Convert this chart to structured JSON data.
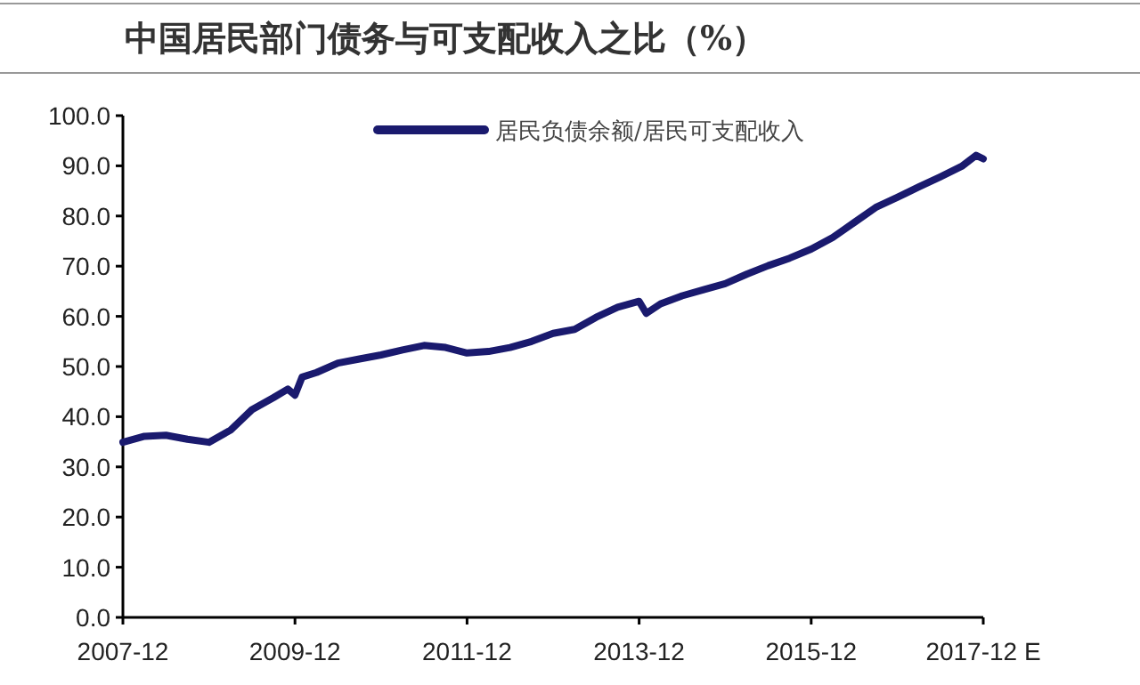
{
  "chart_data": {
    "type": "line",
    "title": "中国居民部门债务与可支配收入之比（%）",
    "legend": "top",
    "x": [
      "2007-12",
      "2008-03",
      "2008-06",
      "2008-09",
      "2008-12",
      "2009-03",
      "2009-06",
      "2009-09",
      "2009-11",
      "2009-12",
      "2010-01",
      "2010-03",
      "2010-06",
      "2010-09",
      "2010-12",
      "2011-03",
      "2011-06",
      "2011-09",
      "2011-12",
      "2012-03",
      "2012-06",
      "2012-09",
      "2012-12",
      "2013-03",
      "2013-06",
      "2013-09",
      "2013-12",
      "2014-01",
      "2014-03",
      "2014-06",
      "2014-09",
      "2014-12",
      "2015-03",
      "2015-06",
      "2015-09",
      "2015-12",
      "2016-03",
      "2016-06",
      "2016-09",
      "2016-12",
      "2017-03",
      "2017-06",
      "2017-09",
      "2017-11",
      "2017-12"
    ],
    "series": [
      {
        "name": "居民负债余额/居民可支配收入",
        "color": "#1a1a6e",
        "values": [
          34.9,
          36.1,
          36.3,
          35.5,
          34.9,
          37.3,
          41.4,
          43.8,
          45.5,
          44.3,
          47.9,
          48.8,
          50.7,
          51.5,
          52.3,
          53.3,
          54.2,
          53.8,
          52.7,
          53.0,
          53.8,
          55.0,
          56.6,
          57.4,
          59.8,
          61.8,
          63.0,
          60.6,
          62.5,
          64.1,
          65.3,
          66.5,
          68.4,
          70.1,
          71.6,
          73.4,
          75.7,
          78.7,
          81.7,
          83.7,
          85.8,
          87.8,
          89.9,
          92.1,
          91.4
        ]
      }
    ],
    "xlim": [
      "2007-12",
      "2017-12"
    ],
    "xticks": [
      "2007-12",
      "2009-12",
      "2011-12",
      "2013-12",
      "2015-12",
      {
        "value": "2017-12",
        "label": "2017-12 E"
      }
    ],
    "ylim": [
      0,
      100
    ],
    "yticks": [
      {
        "value": 0,
        "label": "0.0"
      },
      {
        "value": 10,
        "label": "10.0"
      },
      {
        "value": 20,
        "label": "20.0"
      },
      {
        "value": 30,
        "label": "30.0"
      },
      {
        "value": 40,
        "label": "40.0"
      },
      {
        "value": 50,
        "label": "50.0"
      },
      {
        "value": 60,
        "label": "60.0"
      },
      {
        "value": 70,
        "label": "70.0"
      },
      {
        "value": 80,
        "label": "80.0"
      },
      {
        "value": 90,
        "label": "90.0"
      },
      {
        "value": 100,
        "label": "100.0"
      }
    ]
  }
}
